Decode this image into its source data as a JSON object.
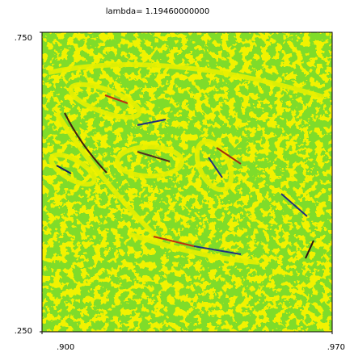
{
  "chart_data": {
    "type": "image",
    "title": "lambda=  1.19460000000",
    "xlim": [
      0.9,
      0.97
    ],
    "ylim": [
      0.25,
      0.75
    ],
    "xticks": [
      {
        "value": 0.9,
        "label": ".900"
      },
      {
        "value": 0.97,
        "label": ".970"
      }
    ],
    "yticks": [
      {
        "value": 0.25,
        "label": ".250"
      },
      {
        "value": 0.75,
        "label": ".750"
      }
    ]
  }
}
